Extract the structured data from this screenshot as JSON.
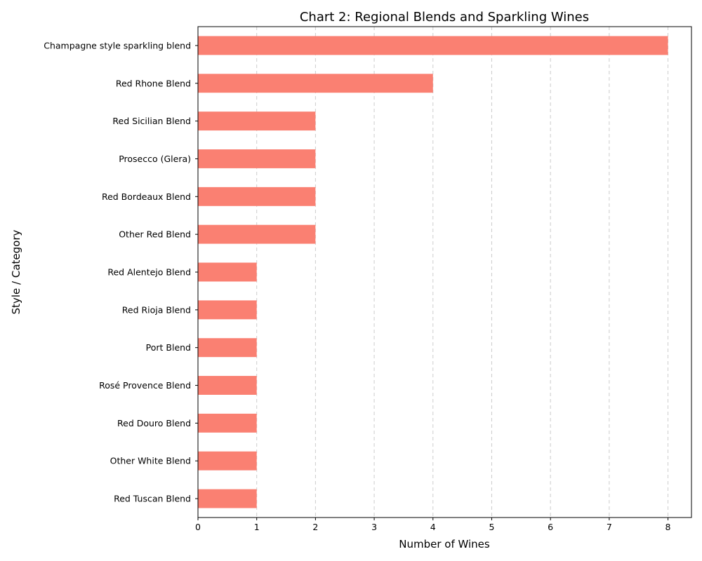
{
  "chart_data": {
    "type": "bar",
    "orientation": "horizontal",
    "title": "Chart 2: Regional Blends and Sparkling Wines",
    "xlabel": "Number of Wines",
    "ylabel": "Style / Category",
    "categories": [
      "Champagne style sparkling blend",
      "Red Rhone Blend",
      "Red Sicilian Blend",
      "Prosecco (Glera)",
      "Red Bordeaux Blend",
      "Other Red Blend",
      "Red Alentejo Blend",
      "Red Rioja Blend",
      "Port Blend",
      "Rosé Provence Blend",
      "Red Douro Blend",
      "Other White Blend",
      "Red Tuscan Blend"
    ],
    "values": [
      8,
      4,
      2,
      2,
      2,
      2,
      1,
      1,
      1,
      1,
      1,
      1,
      1
    ],
    "xlim": [
      0,
      8.4
    ],
    "xticks": [
      0,
      1,
      2,
      3,
      4,
      5,
      6,
      7,
      8
    ],
    "grid": "x-dashed",
    "bar_color": "#fa8072"
  }
}
